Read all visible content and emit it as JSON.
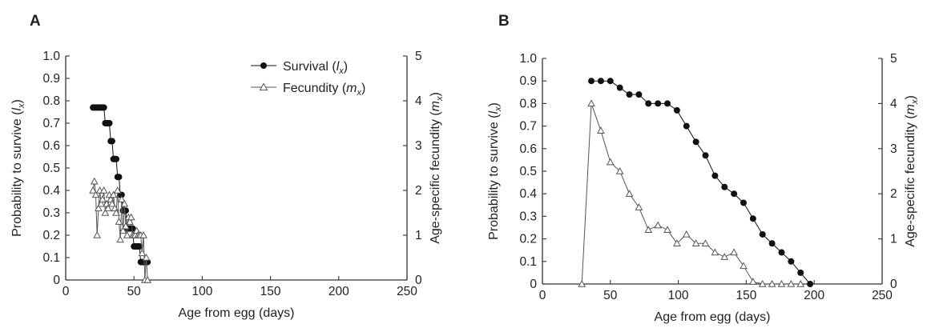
{
  "chart_data": [
    {
      "type": "line",
      "panel_label": "A",
      "xlabel": "Age from egg (days)",
      "ylabel_left": "Probability to survive (lx)",
      "ylabel_right": "Age-specific fecundity (mx)",
      "xlim": [
        0,
        250
      ],
      "ylim_left": [
        0,
        1.0
      ],
      "ylim_right": [
        0,
        5
      ],
      "x_ticks": [
        "0",
        "50",
        "100",
        "150",
        "200",
        "250"
      ],
      "y_left_ticks": [
        "0",
        "0.1",
        "0.2",
        "0.3",
        "0.4",
        "0.5",
        "0.6",
        "0.7",
        "0.8",
        "0.9",
        "1.0"
      ],
      "y_right_ticks": [
        "0",
        "1",
        "2",
        "3",
        "4",
        "5"
      ],
      "legend": {
        "position": "top-right",
        "survival_label": "Survival (lx)",
        "fecundity_label": "Fecundity (mx)"
      },
      "series": [
        {
          "name": "Survival (lx)",
          "axis": "left",
          "marker": "filled-circle",
          "color": "#111111",
          "x": [
            20,
            21,
            22,
            23,
            24,
            25,
            26,
            27,
            28,
            29,
            30,
            31,
            32,
            33,
            34,
            35,
            36,
            37,
            38,
            39,
            40,
            41,
            42,
            43,
            44,
            45,
            46,
            47,
            48,
            49,
            50,
            51,
            52,
            53,
            54,
            55,
            56,
            57,
            58,
            59,
            60
          ],
          "y": [
            0.77,
            0.77,
            0.77,
            0.77,
            0.77,
            0.77,
            0.77,
            0.77,
            0.77,
            0.7,
            0.7,
            0.7,
            0.7,
            0.62,
            0.62,
            0.54,
            0.54,
            0.54,
            0.46,
            0.46,
            0.38,
            0.38,
            0.31,
            0.31,
            0.31,
            0.23,
            0.23,
            0.23,
            0.23,
            0.23,
            0.15,
            0.15,
            0.15,
            0.15,
            0.15,
            0.08,
            0.08,
            0.08,
            0.08,
            0.08,
            0.08
          ]
        },
        {
          "name": "Fecundity (mx)",
          "axis": "right",
          "marker": "open-triangle",
          "color": "#555555",
          "x": [
            20,
            21,
            22,
            23,
            24,
            25,
            26,
            27,
            28,
            29,
            30,
            31,
            32,
            33,
            34,
            35,
            36,
            37,
            38,
            39,
            40,
            41,
            42,
            43,
            44,
            45,
            46,
            47,
            48,
            49,
            50,
            51,
            52,
            53,
            54,
            55,
            56,
            57,
            58,
            59,
            60
          ],
          "y": [
            2.0,
            2.2,
            1.9,
            1.0,
            1.6,
            2.0,
            1.7,
            1.8,
            2.0,
            1.5,
            1.7,
            1.6,
            1.9,
            1.8,
            1.7,
            1.9,
            1.6,
            1.5,
            2.0,
            1.3,
            0.9,
            1.8,
            1.1,
            1.7,
            1.2,
            1.0,
            1.4,
            1.3,
            1.4,
            1.0,
            1.0,
            1.0,
            1.1,
            1.0,
            1.0,
            1.0,
            0.6,
            1.0,
            0.0,
            0.5,
            0.0
          ]
        }
      ]
    },
    {
      "type": "line",
      "panel_label": "B",
      "xlabel": "Age from egg (days)",
      "ylabel_left": "Probability to survive (lx)",
      "ylabel_right": "Age-specific fecundity (mx)",
      "xlim": [
        0,
        250
      ],
      "ylim_left": [
        0,
        1.0
      ],
      "ylim_right": [
        0,
        5
      ],
      "x_ticks": [
        "0",
        "50",
        "100",
        "150",
        "200",
        "250"
      ],
      "y_left_ticks": [
        "0",
        "0.1",
        "0.2",
        "0.3",
        "0.4",
        "0.5",
        "0.6",
        "0.7",
        "0.8",
        "0.9",
        "1.0"
      ],
      "y_right_ticks": [
        "0",
        "1",
        "2",
        "3",
        "4",
        "5"
      ],
      "series": [
        {
          "name": "Survival (lx)",
          "axis": "left",
          "marker": "filled-circle",
          "color": "#111111",
          "x": [
            36,
            43,
            50,
            57,
            64,
            71,
            78,
            85,
            92,
            99,
            106,
            113,
            120,
            127,
            134,
            141,
            148,
            155,
            162,
            169,
            176,
            183,
            190,
            197
          ],
          "y": [
            0.9,
            0.9,
            0.9,
            0.87,
            0.84,
            0.84,
            0.8,
            0.8,
            0.8,
            0.77,
            0.7,
            0.63,
            0.57,
            0.48,
            0.43,
            0.4,
            0.36,
            0.29,
            0.22,
            0.18,
            0.14,
            0.1,
            0.05,
            0.0
          ]
        },
        {
          "name": "Fecundity (mx)",
          "axis": "right",
          "marker": "open-triangle",
          "color": "#555555",
          "x": [
            29,
            36,
            43,
            50,
            57,
            64,
            71,
            78,
            85,
            92,
            99,
            106,
            113,
            120,
            127,
            134,
            141,
            148,
            155,
            162,
            169,
            176,
            183,
            190
          ],
          "y": [
            0.0,
            4.0,
            3.4,
            2.7,
            2.5,
            2.0,
            1.7,
            1.2,
            1.3,
            1.2,
            0.9,
            1.1,
            0.9,
            0.9,
            0.7,
            0.6,
            0.7,
            0.4,
            0.05,
            0.0,
            0.0,
            0.0,
            0.0,
            0.0
          ]
        }
      ]
    }
  ]
}
